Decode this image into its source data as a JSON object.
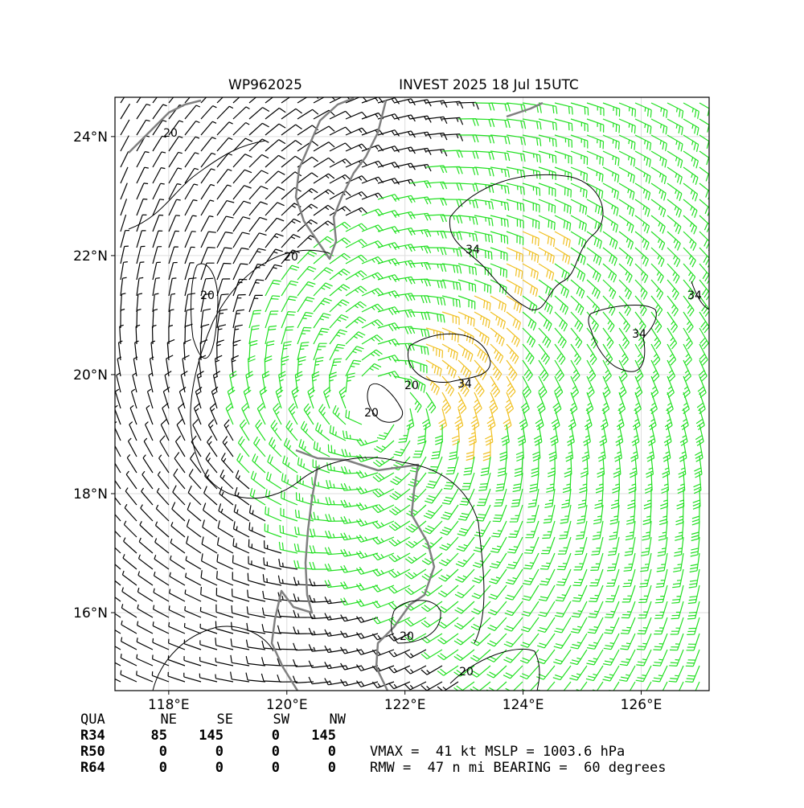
{
  "title_left": "WP962025",
  "title_right": "INVEST 2025 18 Jul 15UTC",
  "map": {
    "xlim": [
      117.09,
      127.15
    ],
    "ylim": [
      14.69,
      24.66
    ],
    "xticks": [
      {
        "value": 118,
        "label": "118°E"
      },
      {
        "value": 120,
        "label": "120°E"
      },
      {
        "value": 122,
        "label": "122°E"
      },
      {
        "value": 124,
        "label": "124°E"
      },
      {
        "value": 126,
        "label": "126°E"
      }
    ],
    "yticks": [
      {
        "value": 16,
        "label": "16°N"
      },
      {
        "value": 18,
        "label": "18°N"
      },
      {
        "value": 20,
        "label": "20°N"
      },
      {
        "value": 22,
        "label": "22°N"
      },
      {
        "value": 24,
        "label": "24°N"
      }
    ],
    "grid": true,
    "contour_labels": [
      "20",
      "20",
      "20",
      "20",
      "20",
      "20",
      "20",
      "34",
      "34",
      "34",
      "34"
    ]
  },
  "table": {
    "header": [
      "QUA",
      "NE",
      "SE",
      "SW",
      "NW"
    ],
    "rows": [
      [
        "R34",
        85,
        145,
        0,
        145
      ],
      [
        "R50",
        0,
        0,
        0,
        0
      ],
      [
        "R64",
        0,
        0,
        0,
        0
      ]
    ]
  },
  "stats": [
    "VMAX =  41 kt MSLP = 1003.6 hPa",
    "RMW =  47 n mi BEARING =  60 degrees"
  ]
}
